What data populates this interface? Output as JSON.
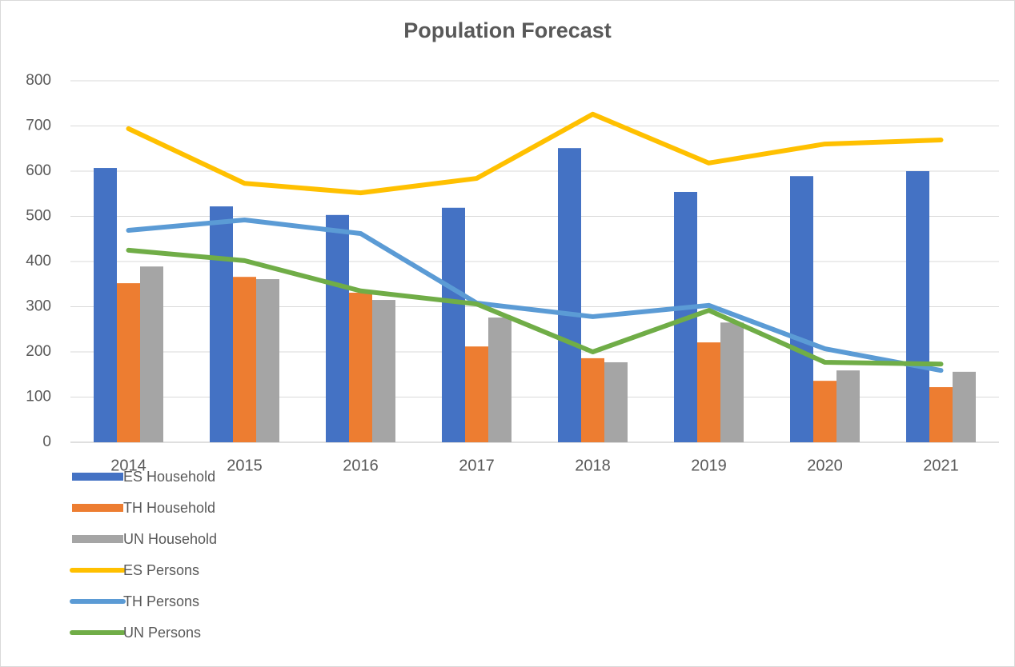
{
  "chart_data": {
    "type": "combo",
    "title": "Population Forecast",
    "categories": [
      "2014",
      "2015",
      "2016",
      "2017",
      "2018",
      "2019",
      "2020",
      "2021"
    ],
    "ylim": [
      0,
      800
    ],
    "yticks": [
      0,
      100,
      200,
      300,
      400,
      500,
      600,
      700,
      800
    ],
    "grid": true,
    "legend": "bottom-left",
    "series": [
      {
        "name": "ES Household",
        "type": "bar",
        "color": "#4472c4",
        "values": [
          607,
          522,
          503,
          519,
          651,
          554,
          589,
          600
        ]
      },
      {
        "name": "TH Household",
        "type": "bar",
        "color": "#ed7d31",
        "values": [
          352,
          366,
          331,
          212,
          186,
          221,
          136,
          122
        ]
      },
      {
        "name": "UN Household",
        "type": "bar",
        "color": "#a5a5a5",
        "values": [
          389,
          361,
          315,
          276,
          177,
          265,
          159,
          156
        ]
      },
      {
        "name": "ES Persons",
        "type": "line",
        "color": "#ffc000",
        "values": [
          694,
          573,
          552,
          584,
          726,
          618,
          660,
          669
        ]
      },
      {
        "name": "TH Persons",
        "type": "line",
        "color": "#5b9bd5",
        "values": [
          469,
          492,
          462,
          308,
          278,
          303,
          207,
          159
        ]
      },
      {
        "name": "UN Persons",
        "type": "line",
        "color": "#70ad47",
        "values": [
          425,
          402,
          335,
          306,
          200,
          292,
          177,
          173
        ]
      }
    ]
  }
}
